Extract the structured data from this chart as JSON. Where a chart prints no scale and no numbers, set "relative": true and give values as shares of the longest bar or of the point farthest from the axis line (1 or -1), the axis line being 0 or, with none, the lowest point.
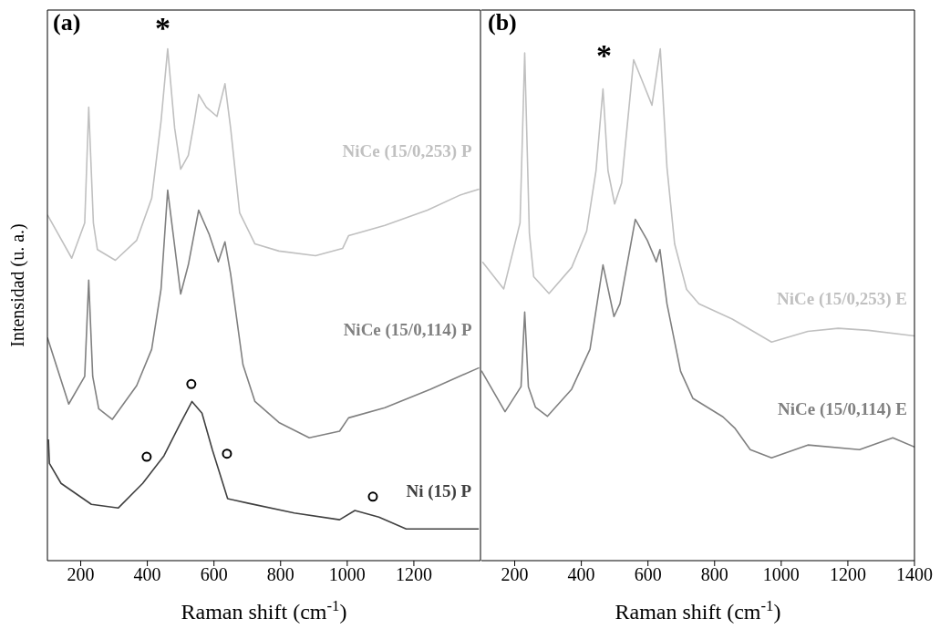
{
  "chart_data": [
    {
      "type": "line",
      "relative": true,
      "xlabel": "Raman shift (cm$^{-1}$)",
      "ylabel": "Intensidad (u. a.)",
      "xlim": [
        100,
        1400
      ],
      "xticks": [
        200,
        400,
        600,
        800,
        1000,
        1200
      ],
      "marker": "none",
      "line_style": "solid",
      "annotations": [
        "(a)",
        "*"
      ],
      "series": [
        {
          "name": "NiCe (15/0,253) P",
          "color": "#c0c0c0",
          "x": [
            100,
            173,
            212,
            224,
            238,
            250,
            304,
            368,
            413,
            441,
            461,
            482,
            500,
            523,
            541,
            554,
            577,
            609,
            633,
            650,
            677,
            723,
            795,
            905,
            986,
            1004,
            1113,
            1241,
            1341,
            1396
          ],
          "values": [
            0.676,
            0.591,
            0.66,
            0.886,
            0.66,
            0.608,
            0.587,
            0.626,
            0.708,
            0.858,
            1.0,
            0.845,
            0.765,
            0.792,
            0.858,
            0.911,
            0.886,
            0.868,
            0.932,
            0.845,
            0.68,
            0.619,
            0.605,
            0.596,
            0.61,
            0.635,
            0.655,
            0.685,
            0.715,
            0.726
          ]
        },
        {
          "name": "NiCe (15/0,114) P",
          "color": "#808080",
          "x": [
            100,
            164,
            212,
            224,
            236,
            254,
            295,
            368,
            413,
            441,
            461,
            500,
            523,
            554,
            586,
            613,
            633,
            650,
            687,
            723,
            795,
            886,
            977,
            1004,
            1113,
            1250,
            1396
          ],
          "values": [
            0.436,
            0.306,
            0.36,
            0.548,
            0.36,
            0.297,
            0.276,
            0.342,
            0.413,
            0.53,
            0.724,
            0.521,
            0.578,
            0.685,
            0.637,
            0.584,
            0.623,
            0.56,
            0.383,
            0.311,
            0.27,
            0.24,
            0.253,
            0.279,
            0.299,
            0.335,
            0.377
          ]
        },
        {
          "name": "Ni (15) P",
          "color": "#404040",
          "x": [
            103,
            106,
            141,
            232,
            313,
            386,
            450,
            495,
            534,
            564,
            595,
            641,
            704,
            841,
            977,
            1023,
            1095,
            1177,
            1395
          ],
          "values": [
            0.237,
            0.19,
            0.151,
            0.11,
            0.103,
            0.151,
            0.205,
            0.263,
            0.311,
            0.288,
            0.217,
            0.121,
            0.112,
            0.093,
            0.08,
            0.098,
            0.085,
            0.062,
            0.062
          ]
        },
        {
          "type": "scatter",
          "marker": "circle",
          "color": "#000000",
          "x": [
            398,
            532,
            639,
            1077
          ],
          "values": [
            0.203,
            0.345,
            0.209,
            0.125
          ]
        }
      ]
    },
    {
      "type": "line",
      "relative": true,
      "xlabel": "Raman shift (cm$^{-1}$)",
      "xlim": [
        100,
        1400
      ],
      "xticks": [
        200,
        400,
        600,
        800,
        1000,
        1200,
        1400
      ],
      "marker": "none",
      "line_style": "solid",
      "annotations": [
        "(b)",
        "*"
      ],
      "series": [
        {
          "name": "NiCe (15/0,253) E",
          "color": "#c0c0c0",
          "x": [
            103,
            167,
            216,
            230,
            244,
            257,
            303,
            371,
            416,
            444,
            465,
            480,
            500,
            521,
            539,
            557,
            585,
            612,
            637,
            657,
            680,
            716,
            753,
            853,
            971,
            1080,
            1171,
            1262,
            1400
          ],
          "values": [
            0.584,
            0.531,
            0.66,
            0.992,
            0.64,
            0.555,
            0.522,
            0.573,
            0.644,
            0.762,
            0.922,
            0.762,
            0.697,
            0.738,
            0.858,
            0.979,
            0.934,
            0.89,
            1.0,
            0.769,
            0.619,
            0.53,
            0.502,
            0.472,
            0.427,
            0.448,
            0.454,
            0.45,
            0.439
          ]
        },
        {
          "name": "NiCe (15/0,114) E",
          "color": "#808080",
          "x": [
            100,
            171,
            219,
            230,
            241,
            262,
            298,
            371,
            426,
            465,
            498,
            516,
            562,
            598,
            625,
            636,
            657,
            698,
            735,
            825,
            862,
            907,
            971,
            1080,
            1235,
            1335,
            1400
          ],
          "values": [
            0.371,
            0.291,
            0.34,
            0.486,
            0.34,
            0.3,
            0.282,
            0.335,
            0.413,
            0.578,
            0.477,
            0.502,
            0.667,
            0.626,
            0.584,
            0.608,
            0.502,
            0.37,
            0.317,
            0.281,
            0.258,
            0.217,
            0.201,
            0.226,
            0.217,
            0.24,
            0.222
          ]
        }
      ]
    }
  ]
}
